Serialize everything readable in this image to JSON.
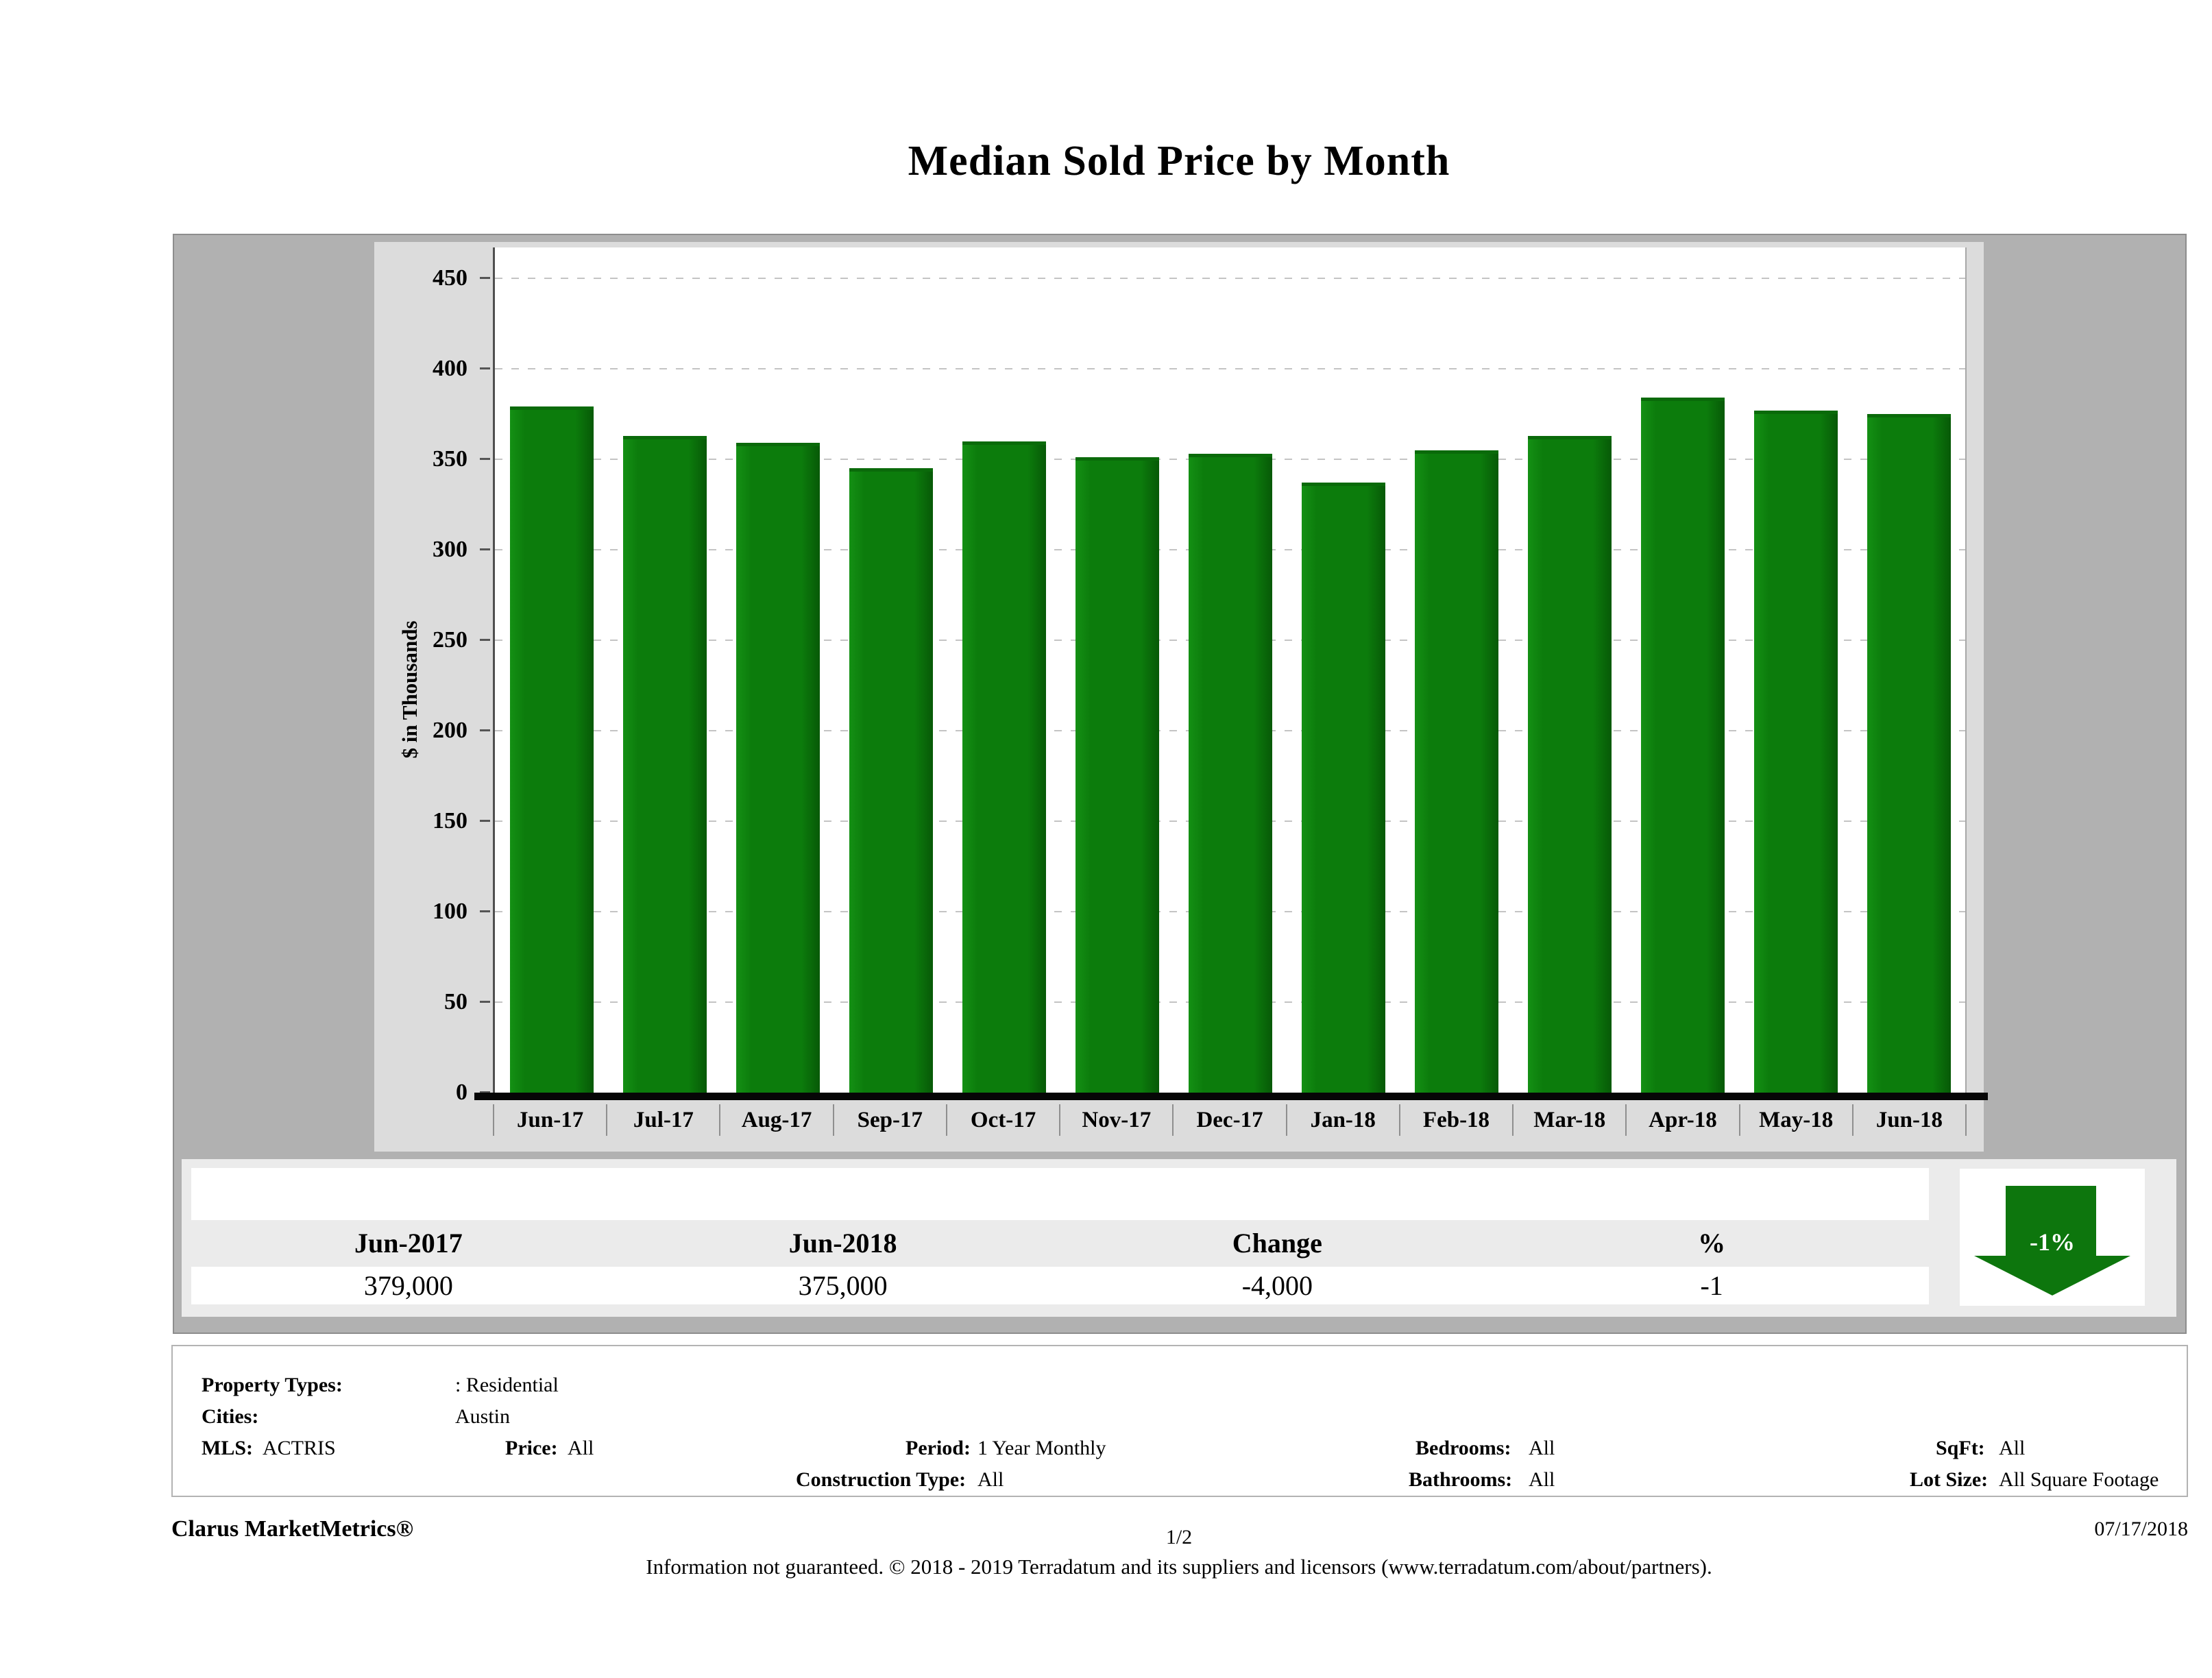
{
  "title": "Median Sold Price by Month",
  "chart_data": {
    "type": "bar",
    "title": "Median Sold Price by Month",
    "categories": [
      "Jun-17",
      "Jul-17",
      "Aug-17",
      "Sep-17",
      "Oct-17",
      "Nov-17",
      "Dec-17",
      "Jan-18",
      "Feb-18",
      "Mar-18",
      "Apr-18",
      "May-18",
      "Jun-18"
    ],
    "values": [
      379,
      363,
      359,
      345,
      360,
      351,
      353,
      337,
      355,
      363,
      384,
      377,
      375
    ],
    "xlabel": "",
    "ylabel": "$ in Thousands",
    "ylim": [
      0,
      450
    ],
    "ytick_step": 50,
    "grid": "dashed horizontal",
    "legend": "none",
    "bar_color": "#0c7c0c"
  },
  "summary_table": {
    "columns": [
      "Jun-2017",
      "Jun-2018",
      "Change",
      "%"
    ],
    "row": [
      "379,000",
      "375,000",
      "-4,000",
      "-1"
    ]
  },
  "trend_badge": {
    "label": "-1%",
    "direction": "down",
    "icon": "arrow-down-icon",
    "color": "#0d760d"
  },
  "filters": {
    "property_types_label": "Property Types:",
    "property_types_value": ": Residential",
    "cities_label": "Cities:",
    "cities_value": "Austin",
    "mls_label": "MLS:",
    "mls_value": "ACTRIS",
    "price_label": "Price:",
    "price_value": "All",
    "period_label": "Period:",
    "period_value": "1 Year Monthly",
    "construction_label": "Construction Type:",
    "construction_value": "All",
    "bedrooms_label": "Bedrooms:",
    "bedrooms_value": "All",
    "bathrooms_label": "Bathrooms:",
    "bathrooms_value": "All",
    "sqft_label": "SqFt:",
    "sqft_value": "All",
    "lot_label": "Lot Size:",
    "lot_value": "All Square Footage"
  },
  "footer": {
    "brand": "Clarus MarketMetrics®",
    "page": "1/2",
    "date": "07/17/2018",
    "disclaimer": "Information not guaranteed. © 2018 - 2019 Terradatum and its suppliers and licensors (www.terradatum.com/about/partners)."
  },
  "colors": {
    "bar_green": "#0c7c0c",
    "arrow_green": "#0d760d",
    "panel_gray": "#b1b1b1",
    "chart_box_gray": "#dcdcdc",
    "summary_bg": "#ebebeb",
    "axis_black": "#060606"
  }
}
